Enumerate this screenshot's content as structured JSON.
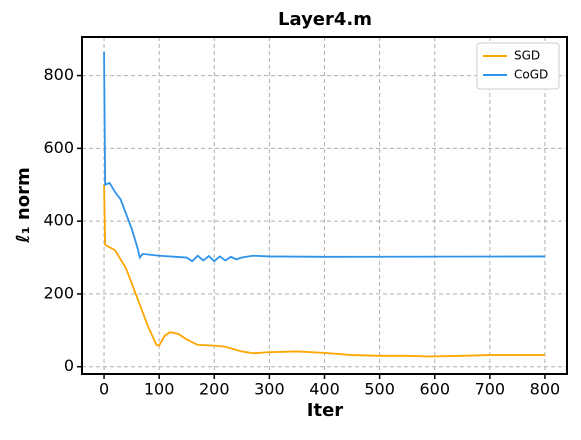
{
  "chart_data": {
    "type": "line",
    "title": "Layer4.m",
    "x_label": "Iter",
    "y_label": "ℓ₁ norm",
    "xlim": [
      -40,
      840
    ],
    "ylim": [
      -20,
      906
    ],
    "xticks": [
      0,
      100,
      200,
      300,
      400,
      500,
      600,
      700,
      800
    ],
    "yticks": [
      0,
      200,
      400,
      600,
      800
    ],
    "grid": true,
    "legend": "upper right",
    "series": [
      {
        "name": "SGD",
        "color": "#ffa500",
        "x": [
          0,
          2,
          20,
          40,
          60,
          80,
          95,
          100,
          110,
          120,
          135,
          150,
          170,
          200,
          220,
          250,
          270,
          300,
          350,
          400,
          450,
          500,
          550,
          590,
          650,
          700,
          800
        ],
        "values": [
          500,
          335,
          320,
          270,
          190,
          110,
          60,
          58,
          85,
          95,
          90,
          75,
          60,
          58,
          55,
          42,
          37,
          40,
          42,
          38,
          32,
          30,
          30,
          28,
          30,
          32,
          32
        ]
      },
      {
        "name": "CoGD",
        "color": "#2e93ea",
        "x": [
          0,
          2,
          10,
          20,
          30,
          40,
          50,
          60,
          65,
          70,
          100,
          130,
          150,
          160,
          170,
          180,
          190,
          200,
          210,
          220,
          230,
          240,
          250,
          270,
          300,
          400,
          800
        ],
        "values": [
          865,
          500,
          505,
          480,
          460,
          420,
          380,
          330,
          300,
          310,
          305,
          302,
          300,
          290,
          305,
          292,
          304,
          290,
          303,
          292,
          302,
          295,
          300,
          305,
          303,
          302,
          303
        ]
      }
    ]
  }
}
